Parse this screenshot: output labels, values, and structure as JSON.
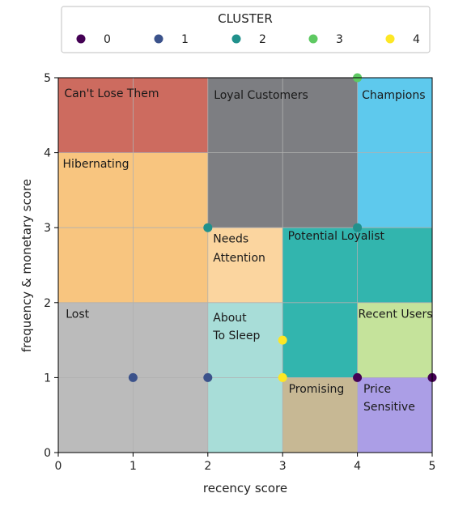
{
  "chart_data": {
    "type": "scatter",
    "xlabel": "recency score",
    "ylabel": "frequency & monetary score",
    "xlim": [
      0,
      5
    ],
    "ylim": [
      0,
      5
    ],
    "xticks": [
      "0",
      "1",
      "2",
      "3",
      "4",
      "5"
    ],
    "yticks": [
      "0",
      "1",
      "2",
      "3",
      "4",
      "5"
    ],
    "grid": true,
    "legend": {
      "title": "CLUSTER",
      "placement": "top, outside plot",
      "entries": [
        "0",
        "1",
        "2",
        "3",
        "4"
      ]
    },
    "segments": [
      {
        "label": "Can't Lose Them",
        "x": [
          0,
          2
        ],
        "y": [
          4,
          5
        ],
        "color": "#cd6b5f"
      },
      {
        "label": "Loyal Customers",
        "x": [
          2,
          4
        ],
        "y": [
          3,
          5
        ],
        "color": "#7d7e82"
      },
      {
        "label": "Champions",
        "x": [
          4,
          5
        ],
        "y": [
          3,
          5
        ],
        "color": "#5ec9ed"
      },
      {
        "label": "Hibernating",
        "x": [
          0,
          2
        ],
        "y": [
          2,
          4
        ],
        "color": "#f8c57f"
      },
      {
        "label": "Needs Attention",
        "x": [
          2,
          3
        ],
        "y": [
          2,
          3
        ],
        "color": "#fbd59f"
      },
      {
        "label": "Potential Loyalist",
        "x": [
          3,
          5
        ],
        "y": [
          2,
          3
        ],
        "color": "#32b5ae"
      },
      {
        "label": "Potential Loyalist",
        "x": [
          3,
          4
        ],
        "y": [
          1,
          2
        ],
        "color": "#32b5ae"
      },
      {
        "label": "Lost",
        "x": [
          0,
          2
        ],
        "y": [
          0,
          2
        ],
        "color": "#bbbbbb"
      },
      {
        "label": "About To Sleep",
        "x": [
          2,
          3
        ],
        "y": [
          0,
          2
        ],
        "color": "#a8ddd8"
      },
      {
        "label": "Recent Users",
        "x": [
          4,
          5
        ],
        "y": [
          1,
          2
        ],
        "color": "#c5e39b"
      },
      {
        "label": "Promising",
        "x": [
          3,
          4
        ],
        "y": [
          0,
          1
        ],
        "color": "#c7b894"
      },
      {
        "label": "Price Sensitive",
        "x": [
          4,
          5
        ],
        "y": [
          0,
          1
        ],
        "color": "#ab9ee6"
      }
    ],
    "segment_labels": [
      {
        "text": "Can't Lose Them",
        "x": 0.08,
        "y": 4.74
      },
      {
        "text": "Loyal Customers",
        "x": 2.08,
        "y": 4.72
      },
      {
        "text": "Champions",
        "x": 4.06,
        "y": 4.72
      },
      {
        "text": "Hibernating",
        "x": 0.06,
        "y": 3.8
      },
      {
        "text": "Needs",
        "x": 2.07,
        "y": 2.8
      },
      {
        "text": "Attention",
        "x": 2.07,
        "y": 2.55
      },
      {
        "text": "Potential Loyalist",
        "x": 3.07,
        "y": 2.84
      },
      {
        "text": "Lost",
        "x": 0.1,
        "y": 1.8
      },
      {
        "text": "About",
        "x": 2.07,
        "y": 1.75
      },
      {
        "text": "To Sleep",
        "x": 2.07,
        "y": 1.51
      },
      {
        "text": "Recent Users",
        "x": 4.01,
        "y": 1.8
      },
      {
        "text": "Promising",
        "x": 3.08,
        "y": 0.8
      },
      {
        "text": "Price",
        "x": 4.08,
        "y": 0.8
      },
      {
        "text": "Sensitive",
        "x": 4.08,
        "y": 0.56
      }
    ],
    "series": [
      {
        "name": "0",
        "color": "#440154",
        "points": [
          [
            4,
            1
          ],
          [
            5,
            1
          ]
        ]
      },
      {
        "name": "1",
        "color": "#3b528b",
        "points": [
          [
            1,
            1
          ],
          [
            2,
            1
          ]
        ]
      },
      {
        "name": "2",
        "color": "#21918c",
        "points": [
          [
            2,
            3
          ],
          [
            4,
            3
          ]
        ]
      },
      {
        "name": "3",
        "color": "#5ec962",
        "points": [
          [
            4,
            5
          ]
        ]
      },
      {
        "name": "4",
        "color": "#fde725",
        "points": [
          [
            3,
            1.5
          ],
          [
            3,
            1
          ]
        ]
      }
    ]
  }
}
